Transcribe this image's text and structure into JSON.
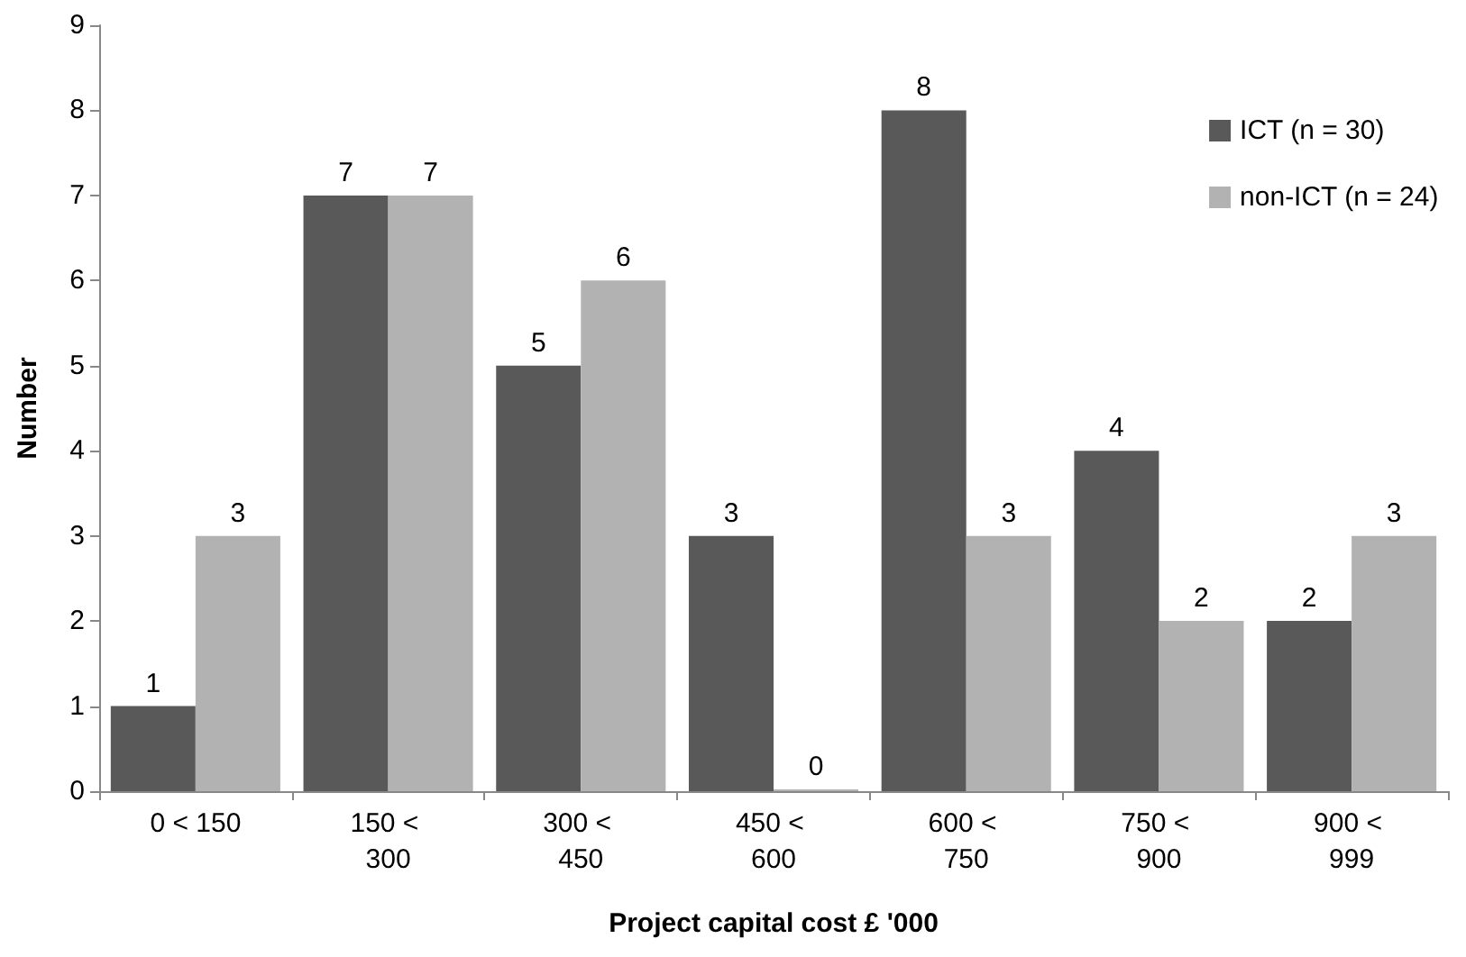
{
  "chart_data": {
    "type": "bar",
    "xlabel": "Project capital cost £ '000",
    "ylabel": "Number",
    "categories": [
      "0 < 150",
      "150 < 300",
      "300 < 450",
      "450 < 600",
      "600 < 750",
      "750 < 900",
      "900 < 999"
    ],
    "series": [
      {
        "name": "ICT (n = 30)",
        "color": "#595959",
        "values": [
          1,
          7,
          5,
          3,
          8,
          4,
          2
        ]
      },
      {
        "name": "non-ICT (n = 24)",
        "color": "#b2b2b2",
        "values": [
          3,
          7,
          6,
          0,
          3,
          2,
          3
        ]
      }
    ],
    "ylim": [
      0,
      9
    ],
    "yticks": [
      0,
      1,
      2,
      3,
      4,
      5,
      6,
      7,
      8,
      9
    ],
    "grid": false,
    "legend": "top right",
    "data_labels": true
  }
}
